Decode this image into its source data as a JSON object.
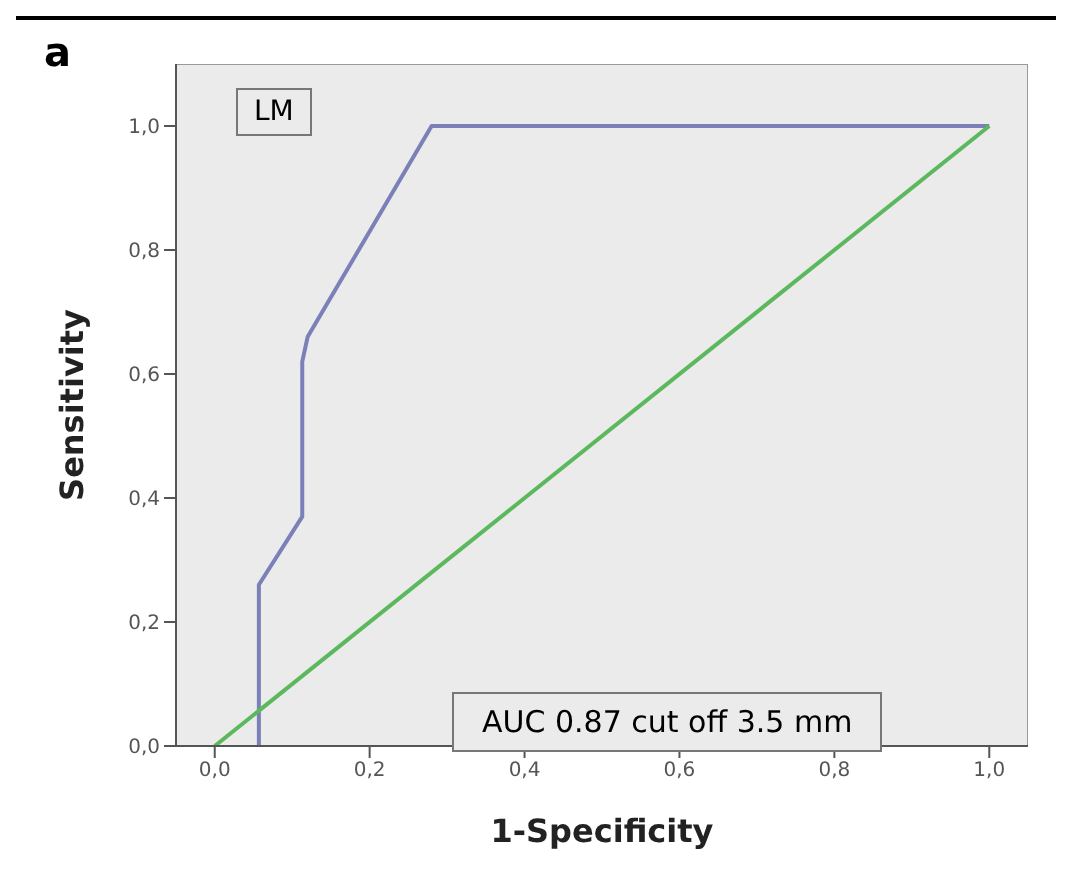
{
  "chart_data": {
    "type": "line",
    "xlabel": "1-Specificity",
    "ylabel": "Sensitivity",
    "annotations": [
      "a",
      "LM",
      "AUC 0.87 cut off 3.5 mm"
    ],
    "series": [
      {
        "color": "#7b80b8",
        "x": [
          0.057,
          0.057,
          0.113,
          0.113,
          0.12,
          0.28,
          1.0
        ],
        "values": [
          0,
          0.26,
          0.37,
          0.62,
          0.66,
          1.0,
          1.0
        ]
      },
      {
        "color": "#5cb85c",
        "x": [
          0,
          1
        ],
        "values": [
          0,
          1
        ]
      }
    ],
    "xlim": [
      -0.05,
      1.05
    ],
    "ylim": [
      0,
      1.1
    ],
    "xticks": [
      {
        "value": 0,
        "label": "0,0"
      },
      {
        "value": 0.2,
        "label": "0,2"
      },
      {
        "value": 0.4,
        "label": "0,4"
      },
      {
        "value": 0.6,
        "label": "0,6"
      },
      {
        "value": 0.8,
        "label": "0,8"
      },
      {
        "value": 1,
        "label": "1,0"
      }
    ],
    "yticks": [
      {
        "value": 0,
        "label": "0,0"
      },
      {
        "value": 0.2,
        "label": "0,2"
      },
      {
        "value": 0.4,
        "label": "0,4"
      },
      {
        "value": 0.6,
        "label": "0,6"
      },
      {
        "value": 0.8,
        "label": "0,8"
      },
      {
        "value": 1,
        "label": "1,0"
      }
    ],
    "grid": false,
    "legend": false,
    "marker": "none",
    "line_style": "solid"
  }
}
